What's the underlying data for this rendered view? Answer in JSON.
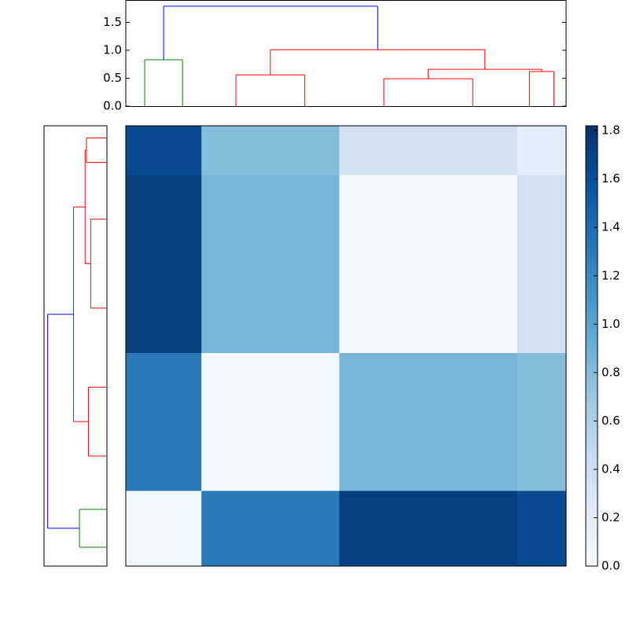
{
  "chart_data": {
    "type": "clustermap",
    "clusters": [
      {
        "size": 17,
        "height": 0.83,
        "color": "#008000"
      },
      {
        "size": 31,
        "height": 0.56,
        "color": "#ff0000"
      },
      {
        "size": 40,
        "height": 0.49,
        "color": "#ff0000"
      },
      {
        "size": 11,
        "height": 0.62,
        "color": "#ff0000"
      }
    ],
    "tree": {
      "height": 1.79,
      "color": "#0000ff",
      "children": [
        {
          "cluster": 0
        },
        {
          "height": 1.01,
          "color": "#ff0000",
          "children": [
            {
              "cluster": 1
            },
            {
              "height": 0.66,
              "color": "#ff0000",
              "children": [
                {
                  "cluster": 2
                },
                {
                  "cluster": 3
                }
              ]
            }
          ]
        }
      ]
    },
    "matrix": [
      [
        0.05,
        1.3,
        1.72,
        1.65
      ],
      [
        1.3,
        0.04,
        0.85,
        0.8
      ],
      [
        1.72,
        0.85,
        0.04,
        0.35
      ],
      [
        1.65,
        0.8,
        0.35,
        0.2
      ]
    ],
    "dendrogram_ylim": [
      0,
      1.9
    ],
    "dendrogram_yticks": [
      {
        "value": 0,
        "label": "0.0"
      },
      0.5,
      {
        "value": 1,
        "label": "1.0"
      },
      1.5
    ],
    "clim": [
      0,
      1.82
    ],
    "colorbar_ticks": [
      {
        "value": 0,
        "label": "0.0"
      },
      0.2,
      0.4,
      0.6,
      0.8,
      {
        "value": 1,
        "label": "1.0"
      },
      1.2,
      1.4,
      1.6,
      1.8
    ],
    "colormap": [
      "#f7fbff",
      "#deebf7",
      "#c6dbef",
      "#9ecae1",
      "#6baed6",
      "#4292c6",
      "#2171b5",
      "#08519c",
      "#08306b"
    ]
  }
}
